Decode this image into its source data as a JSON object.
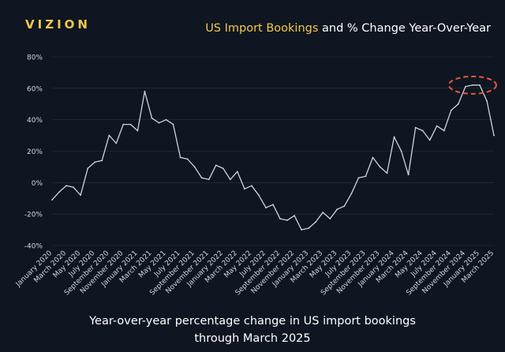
{
  "header": {
    "brand": "VIZION",
    "title_highlight": "US Import Bookings",
    "title_rest": " and % Change Year-Over-Year"
  },
  "caption": {
    "line1": "Year-over-year percentage change in US import bookings",
    "line2": "through March 2025"
  },
  "colors": {
    "background": "#0f1621",
    "line": "#c9d6df",
    "accent": "#f2c94c",
    "highlight_ellipse": "#e4573d",
    "grid": "#27313d",
    "tick_text": "#cfd6de"
  },
  "chart_data": {
    "type": "line",
    "title": "US Import Bookings and % Change Year-Over-Year",
    "ylim": [
      -40,
      80
    ],
    "yticks": [
      "-40%",
      "-20%",
      "0%",
      "20%",
      "40%",
      "60%",
      "80%"
    ],
    "ytick_values": [
      -40,
      -20,
      0,
      20,
      40,
      60,
      80
    ],
    "x_tick_labels": [
      "January 2020",
      "March 2020",
      "May 2020",
      "July 2020",
      "September 2020",
      "November 2020",
      "January 2021",
      "March 2021",
      "May 2021",
      "July 2021",
      "September 2021",
      "November 2021",
      "January 2022",
      "March 2022",
      "May 2022",
      "July 2022",
      "September 2022",
      "November 2022",
      "January 2023",
      "March 2023",
      "May 2023",
      "July 2023",
      "September 2023",
      "November 2023",
      "January 2024",
      "March 2024",
      "May 2024",
      "July 2024",
      "September 2024",
      "November 2024",
      "January 2025",
      "March 2025"
    ],
    "series": [
      {
        "x": [
          "Jan 2020",
          "Feb 2020",
          "Mar 2020",
          "Apr 2020",
          "May 2020",
          "Jun 2020",
          "Jul 2020",
          "Aug 2020",
          "Sep 2020",
          "Oct 2020",
          "Nov 2020",
          "Dec 2020",
          "Jan 2021",
          "Feb 2021",
          "Mar 2021",
          "Apr 2021",
          "May 2021",
          "Jun 2021",
          "Jul 2021",
          "Aug 2021",
          "Sep 2021",
          "Oct 2021",
          "Nov 2021",
          "Dec 2021",
          "Jan 2022",
          "Feb 2022",
          "Mar 2022",
          "Apr 2022",
          "May 2022",
          "Jun 2022",
          "Jul 2022",
          "Aug 2022",
          "Sep 2022",
          "Oct 2022",
          "Nov 2022",
          "Dec 2022",
          "Jan 2023",
          "Feb 2023",
          "Mar 2023",
          "Apr 2023",
          "May 2023",
          "Jun 2023",
          "Jul 2023",
          "Aug 2023",
          "Sep 2023",
          "Oct 2023",
          "Nov 2023",
          "Dec 2023",
          "Jan 2024",
          "Feb 2024",
          "Mar 2024",
          "Apr 2024",
          "May 2024",
          "Jun 2024",
          "Jul 2024",
          "Aug 2024",
          "Sep 2024",
          "Oct 2024",
          "Nov 2024",
          "Dec 2024",
          "Jan 2025",
          "Feb 2025",
          "Mar 2025"
        ],
        "values": [
          -11,
          -6,
          -2,
          -3,
          -8,
          9,
          13,
          14,
          30,
          25,
          37,
          37,
          33,
          58,
          41,
          38,
          40,
          37,
          16,
          15,
          10,
          3,
          2,
          11,
          9,
          2,
          7,
          -4,
          -2,
          -8,
          -16,
          -14,
          -23,
          -24,
          -21,
          -30,
          -29,
          -25,
          -19,
          -23,
          -17,
          -15,
          -7,
          3,
          4,
          16,
          10,
          6,
          29,
          20,
          5,
          35,
          33,
          27,
          36,
          33,
          46,
          50,
          61,
          62,
          62,
          52,
          30
        ]
      }
    ],
    "highlight": {
      "type": "ellipse",
      "x_range": [
        "Oct 2024",
        "Feb 2025"
      ],
      "y_center": 62
    }
  }
}
